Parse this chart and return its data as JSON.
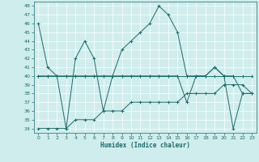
{
  "xlabel": "Humidex (Indice chaleur)",
  "background_color": "#d0eded",
  "grid_color": "#b0d8d8",
  "line_color": "#1a6b6b",
  "xlim": [
    -0.5,
    23.5
  ],
  "ylim": [
    33.5,
    48.5
  ],
  "yticks": [
    34,
    35,
    36,
    37,
    38,
    39,
    40,
    41,
    42,
    43,
    44,
    45,
    46,
    47,
    48
  ],
  "xticks": [
    0,
    1,
    2,
    3,
    4,
    5,
    6,
    7,
    8,
    9,
    10,
    11,
    12,
    13,
    14,
    15,
    16,
    17,
    18,
    19,
    20,
    21,
    22,
    23
  ],
  "series": [
    [
      46,
      41,
      40,
      34,
      42,
      44,
      42,
      36,
      40,
      43,
      44,
      45,
      46,
      48,
      47,
      45,
      40,
      40,
      40,
      41,
      40,
      34,
      38,
      38
    ],
    [
      40,
      40,
      40,
      40,
      40,
      40,
      40,
      40,
      40,
      40,
      40,
      40,
      40,
      40,
      40,
      40,
      40,
      40,
      40,
      40,
      40,
      40,
      40,
      40
    ],
    [
      40,
      40,
      40,
      40,
      40,
      40,
      40,
      40,
      40,
      40,
      40,
      40,
      40,
      40,
      40,
      40,
      37,
      40,
      40,
      41,
      40,
      40,
      38,
      38
    ],
    [
      34,
      34,
      34,
      34,
      35,
      35,
      35,
      36,
      36,
      36,
      37,
      37,
      37,
      37,
      37,
      37,
      38,
      38,
      38,
      38,
      39,
      39,
      39,
      38
    ]
  ]
}
